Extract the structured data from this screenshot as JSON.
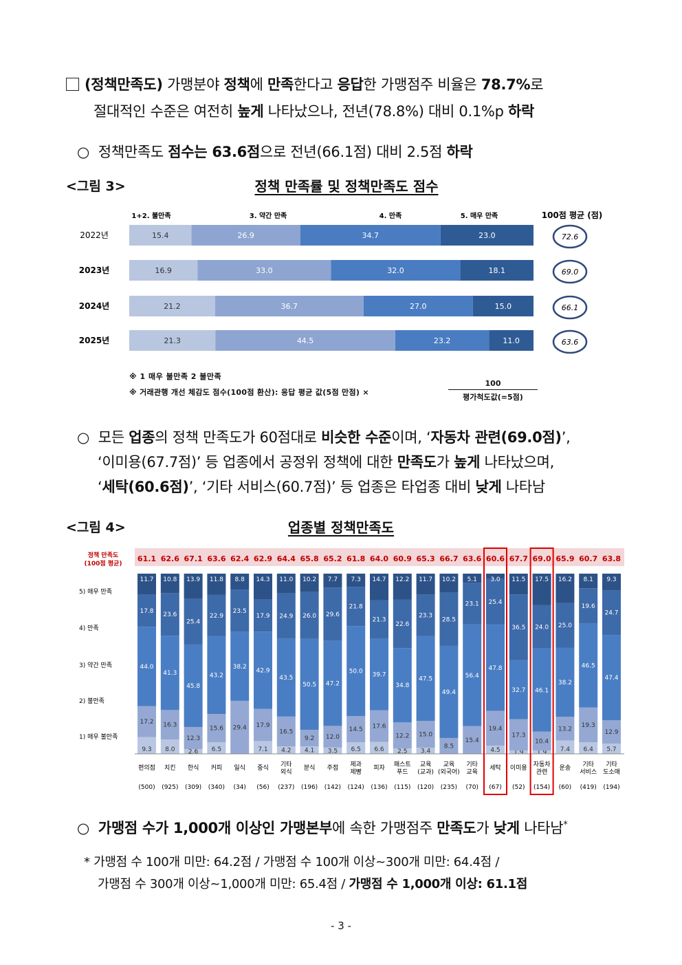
{
  "para1": {
    "box_label": "(정책만족도)",
    "t1": " 가맹분야 ",
    "b1": "정책",
    "t2": "에 ",
    "b2": "만족",
    "t3": "한다고 ",
    "b3": "응답",
    "t4": "한 가맹점주 비율은 ",
    "b4": "78.7%",
    "t5": "로",
    "l2a": "절대적인 수준은 여전히 ",
    "l2b": "높게",
    "l2c": " 나타났으나, 전년(78.8%) 대비 0.1%p ",
    "l2d": "하락"
  },
  "para2": {
    "marker": "○",
    "t1": "정책만족도 ",
    "b1": "점수는 63.6점",
    "t2": "으로 전년(66.1점) 대비 2.5점 ",
    "b2": "하락"
  },
  "fig3": {
    "label": "<그림 3>",
    "title": "정책 만족률 및 정책만족도 점수",
    "legend": [
      "1+2. 불만족",
      "3. 약간 만족",
      "4. 만족",
      "5. 매우 만족"
    ],
    "avg_header": "100점 평균 (점)",
    "note1": "※ 1 매우 불만족   2 불만족",
    "note2": "※ 거래관행 개선 체감도 점수(100점 환산): 응답 평균 값(5점 만점)  ×",
    "frac_num": "100",
    "frac_den": "평가척도값(=5점)"
  },
  "chart_data": [
    {
      "type": "bar",
      "orientation": "horizontal-stacked-100",
      "title": "정책 만족률 및 정책만족도 점수",
      "categories": [
        "2022년",
        "2023년",
        "2024년",
        "2025년"
      ],
      "series": [
        {
          "name": "1+2. 불만족",
          "values": [
            15.4,
            16.9,
            21.2,
            21.3
          ],
          "color": "#b8c6e0"
        },
        {
          "name": "3. 약간 만족",
          "values": [
            26.9,
            33.0,
            36.7,
            44.5
          ],
          "color": "#8ea5d2"
        },
        {
          "name": "4. 만족",
          "values": [
            34.7,
            32.0,
            27.0,
            23.2
          ],
          "color": "#4a7cc2"
        },
        {
          "name": "5. 매우 만족",
          "values": [
            23.0,
            18.1,
            15.0,
            11.0
          ],
          "color": "#2f5b95"
        }
      ],
      "labels": [
        [
          "15.4",
          "26.9",
          "34.7",
          "23.0"
        ],
        [
          "16.9",
          "33.0",
          "32.0",
          "18.1"
        ],
        [
          "21.2",
          "36.7",
          "27.0",
          "15.0"
        ],
        [
          "21.3",
          "44.5",
          "23.2",
          "11.0"
        ]
      ],
      "avg_scores": [
        "72.6",
        "69.0",
        "66.1",
        "63.6"
      ]
    },
    {
      "type": "bar",
      "orientation": "vertical-stacked-100",
      "title": "업종별 정책만족도",
      "score_header": [
        "정책 만족도",
        "(100점 평균)"
      ],
      "legend": [
        "5) 매우 만족",
        "4) 만족",
        "3) 약간 만족",
        "2) 불만족",
        "1) 매우 불만족"
      ],
      "categories": [
        {
          "name": [
            "편의점"
          ],
          "n": "(500)"
        },
        {
          "name": [
            "치킨"
          ],
          "n": "(925)"
        },
        {
          "name": [
            "한식"
          ],
          "n": "(309)"
        },
        {
          "name": [
            "커피"
          ],
          "n": "(340)"
        },
        {
          "name": [
            "일식"
          ],
          "n": "(34)"
        },
        {
          "name": [
            "중식"
          ],
          "n": "(56)"
        },
        {
          "name": [
            "기타",
            "외식"
          ],
          "n": "(237)"
        },
        {
          "name": [
            "분식"
          ],
          "n": "(196)"
        },
        {
          "name": [
            "주점"
          ],
          "n": "(142)"
        },
        {
          "name": [
            "제과",
            "제빵"
          ],
          "n": "(124)"
        },
        {
          "name": [
            "피자"
          ],
          "n": "(136)"
        },
        {
          "name": [
            "패스트",
            "푸드"
          ],
          "n": "(115)"
        },
        {
          "name": [
            "교육",
            "(교과)"
          ],
          "n": "(120)"
        },
        {
          "name": [
            "교육",
            "(외국어)"
          ],
          "n": "(235)"
        },
        {
          "name": [
            "기타",
            "교육"
          ],
          "n": "(70)"
        },
        {
          "name": [
            "세탁"
          ],
          "n": "(67)"
        },
        {
          "name": [
            "이미용"
          ],
          "n": "(52)"
        },
        {
          "name": [
            "자동차",
            "관련"
          ],
          "n": "(154)"
        },
        {
          "name": [
            "운송"
          ],
          "n": "(60)"
        },
        {
          "name": [
            "기타",
            "서비스"
          ],
          "n": "(419)"
        },
        {
          "name": [
            "기타",
            "도소매"
          ],
          "n": "(194)"
        }
      ],
      "scores": [
        "61.1",
        "62.6",
        "67.1",
        "63.6",
        "62.4",
        "62.9",
        "64.4",
        "65.8",
        "65.2",
        "61.8",
        "64.0",
        "60.9",
        "65.3",
        "66.7",
        "63.6",
        "60.6",
        "67.7",
        "69.0",
        "65.9",
        "60.7",
        "63.8"
      ],
      "highlighted": [
        15,
        17
      ],
      "series": [
        {
          "name": "1) 매우 불만족",
          "color": "#b9c7e2",
          "labels": [
            "9.3",
            "8.0",
            "2.6",
            "6.5",
            "",
            "7.1",
            "4.2",
            "4.1",
            "3.5",
            "6.5",
            "6.6",
            "2.5",
            "3.4",
            "",
            "",
            "4.5",
            "1.9",
            "1.9",
            "7.4",
            "6.4",
            "5.7"
          ],
          "values": [
            9.3,
            8.0,
            2.6,
            6.5,
            0,
            7.1,
            4.2,
            4.1,
            3.5,
            6.5,
            6.6,
            2.5,
            3.4,
            0,
            0,
            4.5,
            1.9,
            1.9,
            7.4,
            6.4,
            5.7
          ]
        },
        {
          "name": "2) 불만족",
          "color": "#94a8d3",
          "labels": [
            "17.2",
            "16.3",
            "12.3",
            "15.6",
            "29.4",
            "17.9",
            "16.5",
            "9.2",
            "12.0",
            "14.5",
            "17.6",
            "12.2",
            "15.0",
            "8.5",
            "15.4",
            "19.4",
            "17.3",
            "10.4",
            "13.2",
            "19.3",
            "12.9"
          ],
          "values": [
            17.2,
            16.3,
            12.3,
            15.6,
            29.4,
            17.9,
            16.5,
            9.2,
            12.0,
            14.5,
            17.6,
            12.2,
            15.0,
            8.5,
            15.4,
            19.4,
            17.3,
            10.4,
            13.2,
            19.3,
            12.9
          ]
        },
        {
          "name": "3) 약간 만족",
          "color": "#4a7ec4",
          "labels": [
            "44.0",
            "41.3",
            "45.8",
            "43.2",
            "38.2",
            "42.9",
            "43.5",
            "50.5",
            "47.2",
            "50.0",
            "39.7",
            "34.8",
            "47.5",
            "49.4",
            "56.4",
            "47.8",
            "32.7",
            "46.1",
            "38.2",
            "46.5",
            "47.4"
          ],
          "values": [
            44.0,
            41.3,
            45.8,
            43.2,
            38.2,
            42.9,
            43.5,
            50.5,
            47.2,
            50.0,
            39.7,
            34.8,
            47.5,
            49.4,
            56.4,
            47.8,
            32.7,
            46.1,
            38.2,
            46.5,
            47.4
          ]
        },
        {
          "name": "4) 만족",
          "color": "#3d6aa9",
          "labels": [
            "17.8",
            "23.6",
            "25.4",
            "22.9",
            "23.5",
            "17.9",
            "24.9",
            "26.0",
            "29.6",
            "21.8",
            "21.3",
            "22.6",
            "23.3",
            "28.5",
            "23.1",
            "25.4",
            "36.5",
            "24.0",
            "25.0",
            "19.6",
            "24.7"
          ],
          "values": [
            17.8,
            23.6,
            25.4,
            22.9,
            23.5,
            17.9,
            24.9,
            26.0,
            29.6,
            21.8,
            21.3,
            22.6,
            23.3,
            28.5,
            23.1,
            25.4,
            36.5,
            24.0,
            25.0,
            19.6,
            24.7
          ]
        },
        {
          "name": "5) 매우 만족",
          "color": "#2c5288",
          "labels": [
            "11.7",
            "10.8",
            "13.9",
            "11.8",
            "8.8",
            "14.3",
            "11.0",
            "10.2",
            "7.7",
            "7.3",
            "14.7",
            "12.2",
            "11.7",
            "10.2",
            "5.1",
            "3.0",
            "11.5",
            "17.5",
            "16.2",
            "8.1",
            "9.3"
          ],
          "values": [
            11.7,
            10.8,
            13.9,
            11.8,
            8.8,
            14.3,
            11.0,
            10.2,
            7.7,
            7.3,
            14.7,
            12.2,
            11.7,
            10.2,
            5.1,
            3.0,
            11.5,
            17.5,
            16.2,
            8.1,
            9.3
          ]
        }
      ]
    }
  ],
  "para3": {
    "marker": "○",
    "l1a": "모든 ",
    "l1b": "업종",
    "l1c": "의 정책 만족도가 60점대로 ",
    "l1d": "비슷한 수준",
    "l1e": "이며, ‘",
    "l1f": "자동차 관련(69.0점)",
    "l1g": "’,",
    "l2a": "‘이미용(67.7점)’ 등 업종에서 공정위 정책에 대한 ",
    "l2b": "만족도",
    "l2c": "가 ",
    "l2d": "높게",
    "l2e": " 나타났으며,",
    "l3a": "‘",
    "l3b": "세탁(60.6점)",
    "l3c": "’, ‘기타 서비스(60.7점)’ 등 업종은 타업종 대비 ",
    "l3d": "낮게",
    "l3e": " 나타남"
  },
  "fig4": {
    "label": "<그림 4>",
    "title": "업종별 정책만족도"
  },
  "para4": {
    "marker": "○",
    "b1": "가맹점 수가 1,000개 이상인 가맹본부",
    "t1": "에 속한 가맹점주 ",
    "b2": "만족도",
    "t2": "가 ",
    "b3": "낮게",
    "t3": " 나타남",
    "sup": "*"
  },
  "footnote": {
    "l1": "* 가맹점 수 100개 미만: 64.2점 / 가맹점 수 100개 이상~300개 미만: 64.4점 /",
    "l2a": "가맹점 수 300개 이상~1,000개 미만: 65.4점 / ",
    "l2b": "가맹점 수 1,000개 이상: 61.1점"
  },
  "page_number": "- 3 -"
}
